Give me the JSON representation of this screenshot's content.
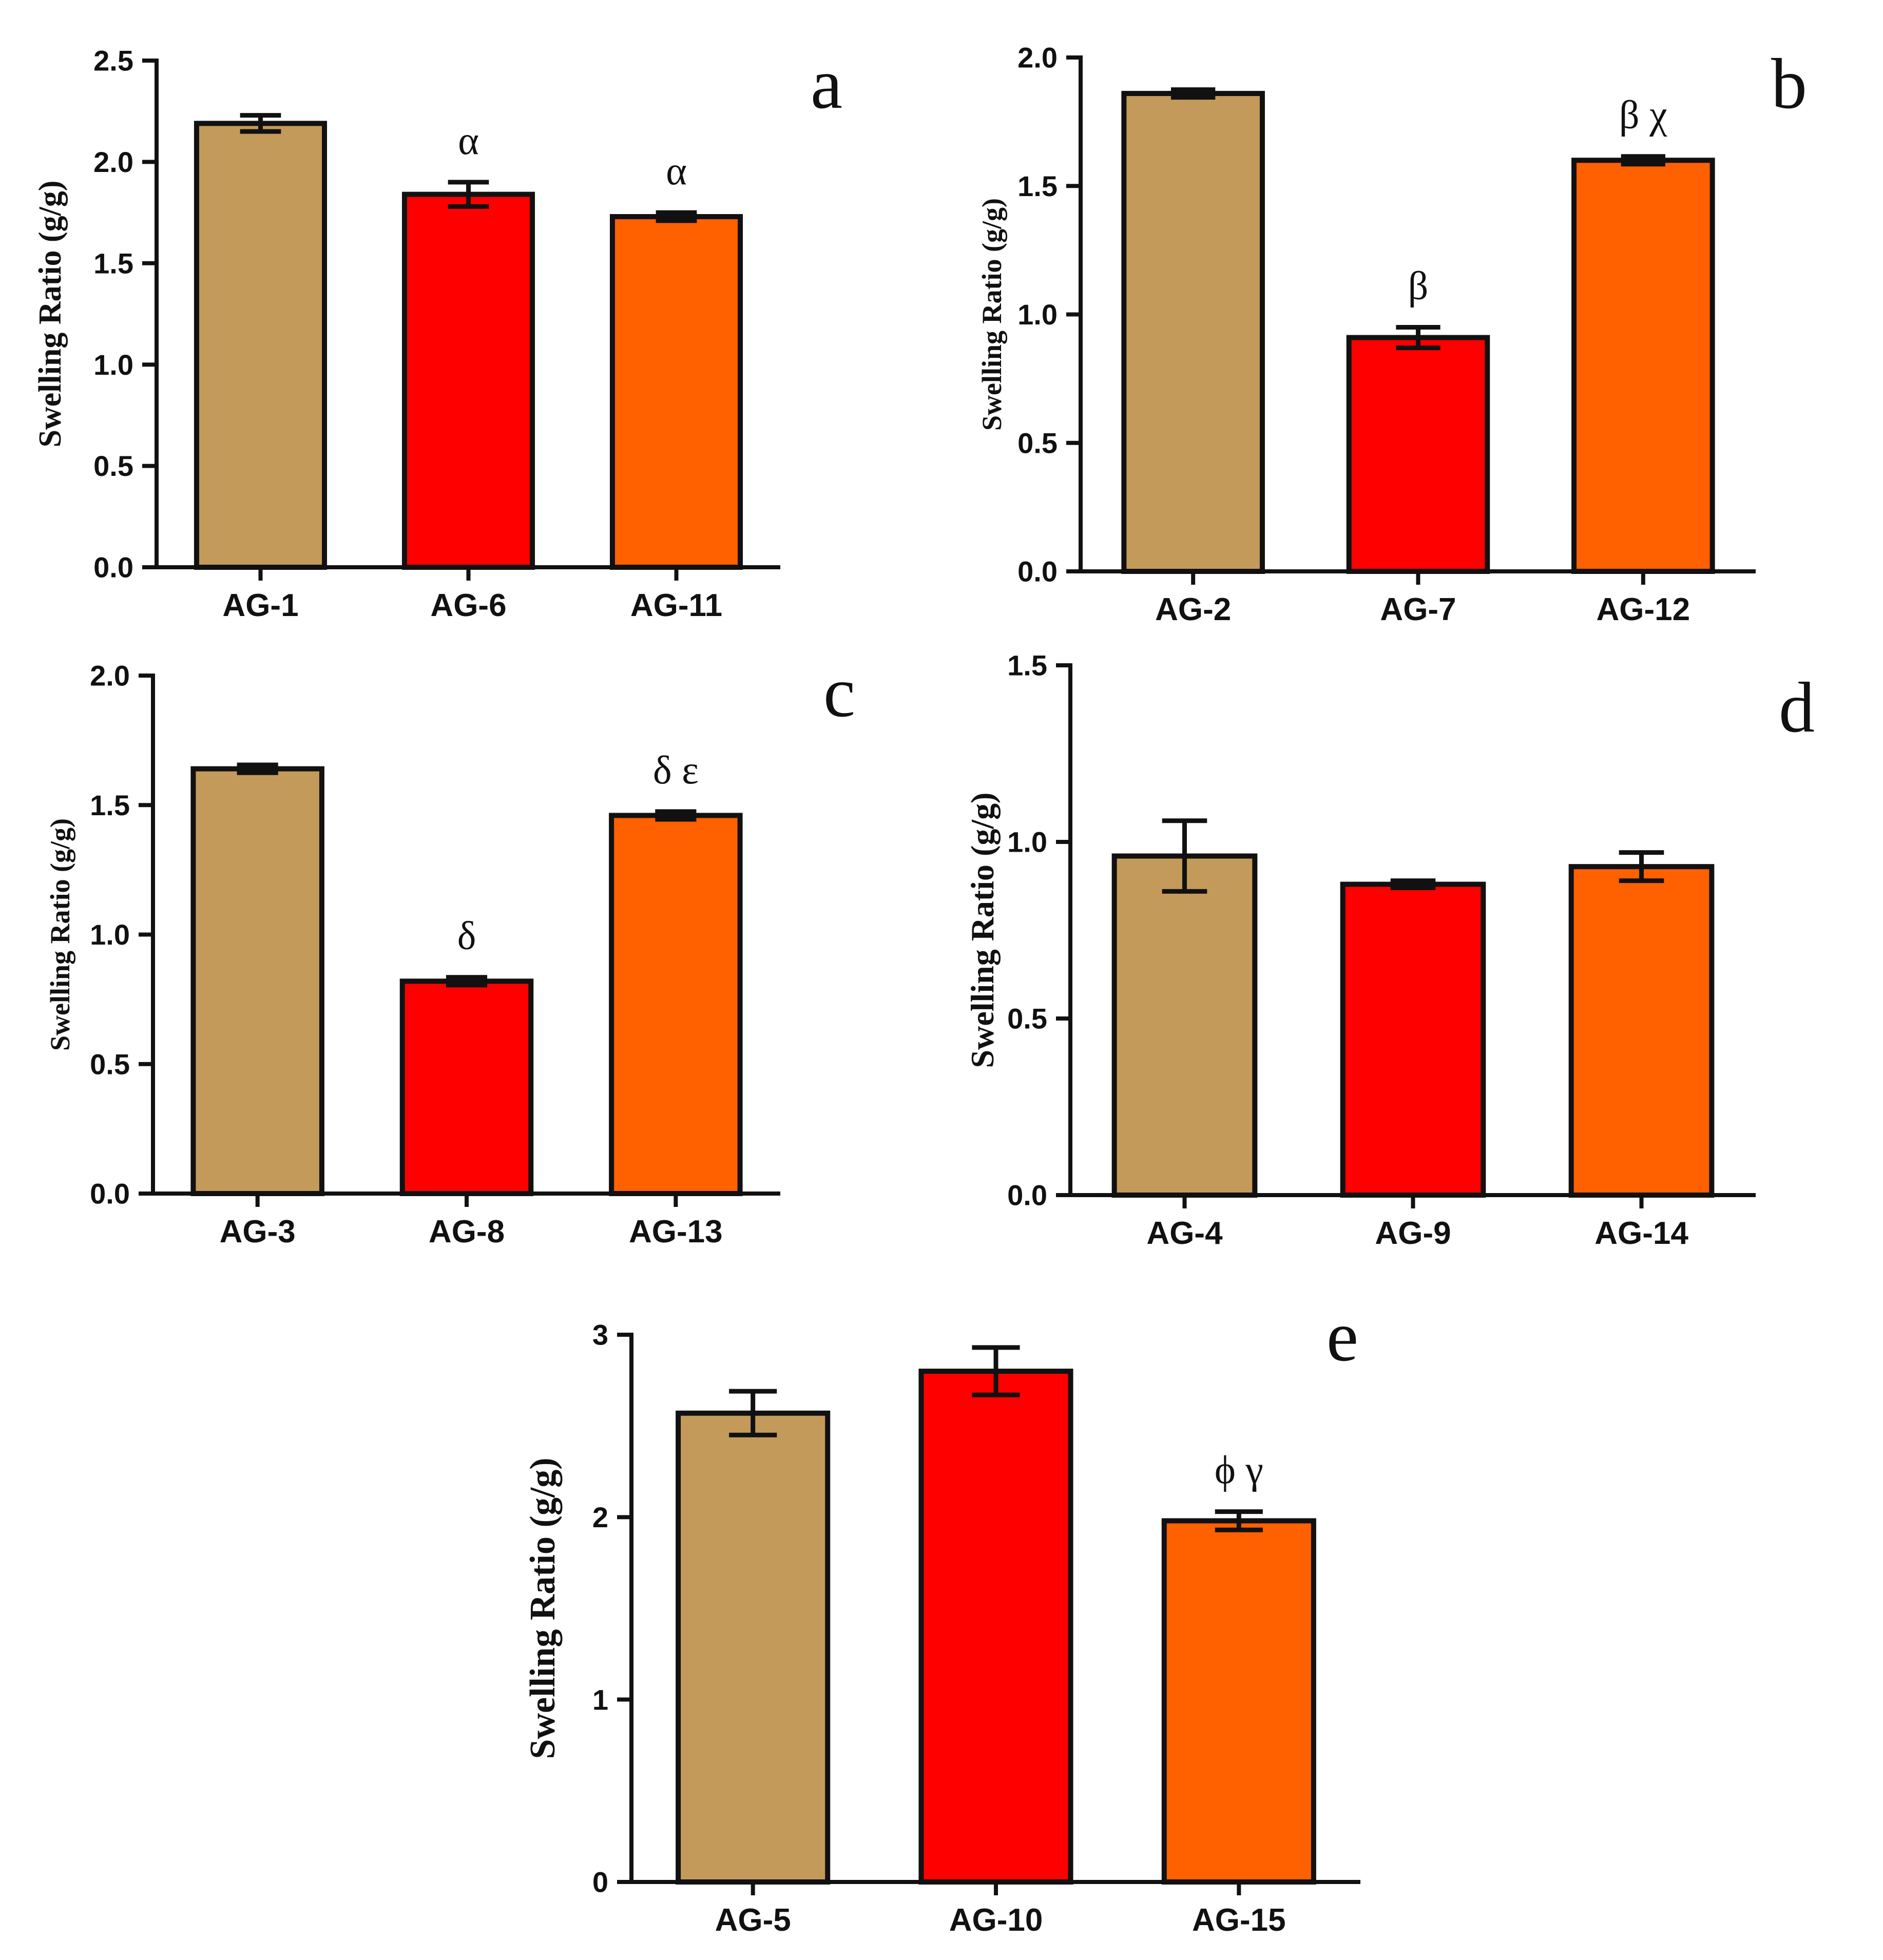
{
  "figure": {
    "colors": {
      "tan": "#C49A5A",
      "red": "#FF0000",
      "orange": "#FF6000",
      "ink": "#111111"
    }
  },
  "chart_data": [
    {
      "panel": "a",
      "type": "bar",
      "ylabel": "Swelling Ratio (g/g)",
      "ylim": [
        0,
        2.5
      ],
      "yticks": [
        "0.0",
        "0.5",
        "1.0",
        "1.5",
        "2.0",
        "2.5"
      ],
      "categories": [
        "AG-1",
        "AG-6",
        "AG-11"
      ],
      "values": [
        2.19,
        1.84,
        1.73
      ],
      "errors": [
        0.04,
        0.06,
        0.02
      ],
      "colors": [
        "#C49A5A",
        "#FF0000",
        "#FF6000"
      ],
      "annotations": [
        "",
        "α",
        "α"
      ]
    },
    {
      "panel": "b",
      "type": "bar",
      "ylabel": "Swelling Ratio (g/g)",
      "ylim": [
        0,
        2.0
      ],
      "yticks": [
        "0.0",
        "0.5",
        "1.0",
        "1.5",
        "2.0"
      ],
      "categories": [
        "AG-2",
        "AG-7",
        "AG-12"
      ],
      "values": [
        1.86,
        0.91,
        1.6
      ],
      "errors": [
        0.015,
        0.04,
        0.015
      ],
      "colors": [
        "#C49A5A",
        "#FF0000",
        "#FF6000"
      ],
      "annotations": [
        "",
        "β",
        "β χ"
      ]
    },
    {
      "panel": "c",
      "type": "bar",
      "ylabel": "Swelling Ratio (g/g)",
      "ylim": [
        0,
        2.0
      ],
      "yticks": [
        "0.0",
        "0.5",
        "1.0",
        "1.5",
        "2.0"
      ],
      "categories": [
        "AG-3",
        "AG-8",
        "AG-13"
      ],
      "values": [
        1.64,
        0.82,
        1.46
      ],
      "errors": [
        0.015,
        0.015,
        0.015
      ],
      "colors": [
        "#C49A5A",
        "#FF0000",
        "#FF6000"
      ],
      "annotations": [
        "",
        "δ",
        "δ ε"
      ]
    },
    {
      "panel": "d",
      "type": "bar",
      "ylabel": "Swelling Ratio (g/g)",
      "ylim": [
        0,
        1.5
      ],
      "yticks": [
        "0.0",
        "0.5",
        "1.0",
        "1.5"
      ],
      "categories": [
        "AG-4",
        "AG-9",
        "AG-14"
      ],
      "values": [
        0.96,
        0.88,
        0.93
      ],
      "errors": [
        0.1,
        0.01,
        0.04
      ],
      "colors": [
        "#C49A5A",
        "#FF0000",
        "#FF6000"
      ],
      "annotations": [
        "",
        "",
        ""
      ]
    },
    {
      "panel": "e",
      "type": "bar",
      "ylabel": "Swelling Ratio (g/g)",
      "ylim": [
        0,
        3
      ],
      "yticks": [
        "0",
        "1",
        "2",
        "3"
      ],
      "categories": [
        "AG-5",
        "AG-10",
        "AG-15"
      ],
      "values": [
        2.57,
        2.8,
        1.98
      ],
      "errors": [
        0.12,
        0.13,
        0.05
      ],
      "colors": [
        "#C49A5A",
        "#FF0000",
        "#FF6000"
      ],
      "annotations": [
        "",
        "",
        "ϕ γ"
      ]
    }
  ]
}
